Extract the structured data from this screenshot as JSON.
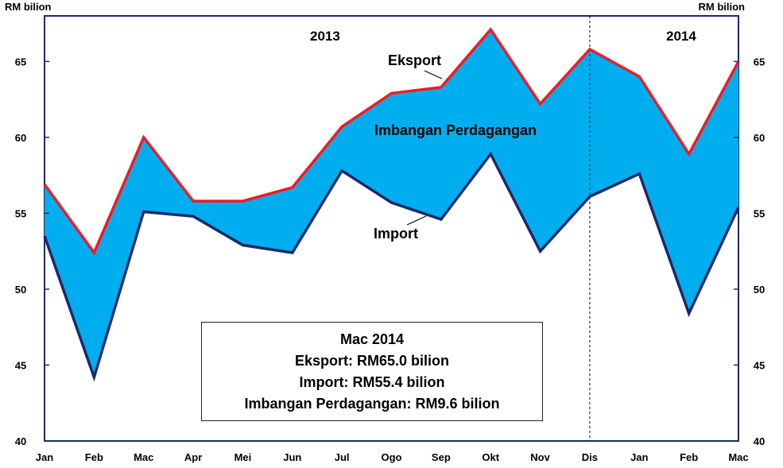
{
  "chart_data": {
    "type": "area",
    "unit_left": "RM bilion",
    "unit_right": "RM bilion",
    "categories": [
      "Jan",
      "Feb",
      "Mac",
      "Apr",
      "Mei",
      "Jun",
      "Jul",
      "Ogo",
      "Sep",
      "Okt",
      "Nov",
      "Dis",
      "Jan",
      "Feb",
      "Mac"
    ],
    "year_labels": [
      "2013",
      "2014"
    ],
    "series": [
      {
        "name": "Eksport",
        "color": "#ee1c25",
        "values": [
          56.9,
          52.4,
          60.0,
          55.8,
          55.8,
          56.7,
          60.7,
          62.9,
          63.3,
          67.1,
          62.2,
          65.8,
          64.0,
          58.9,
          65.0
        ]
      },
      {
        "name": "Import",
        "color": "#1b2a6b",
        "values": [
          53.5,
          44.2,
          55.1,
          54.8,
          52.9,
          52.4,
          57.8,
          55.7,
          54.6,
          58.9,
          52.5,
          56.1,
          57.6,
          48.4,
          55.4
        ]
      }
    ],
    "fill_label": "Imbangan Perdagangan",
    "fill_color": "#00aeef",
    "ylim": [
      40,
      68
    ],
    "yticks": [
      40,
      45,
      50,
      55,
      60,
      65
    ],
    "divider_after": "Dis",
    "infobox": {
      "title": "Mac 2014",
      "line1": "Eksport: RM65.0 bilion",
      "line2": "Import: RM55.4 bilion",
      "line3": "Imbangan Perdagangan: RM9.6 bilion"
    }
  }
}
